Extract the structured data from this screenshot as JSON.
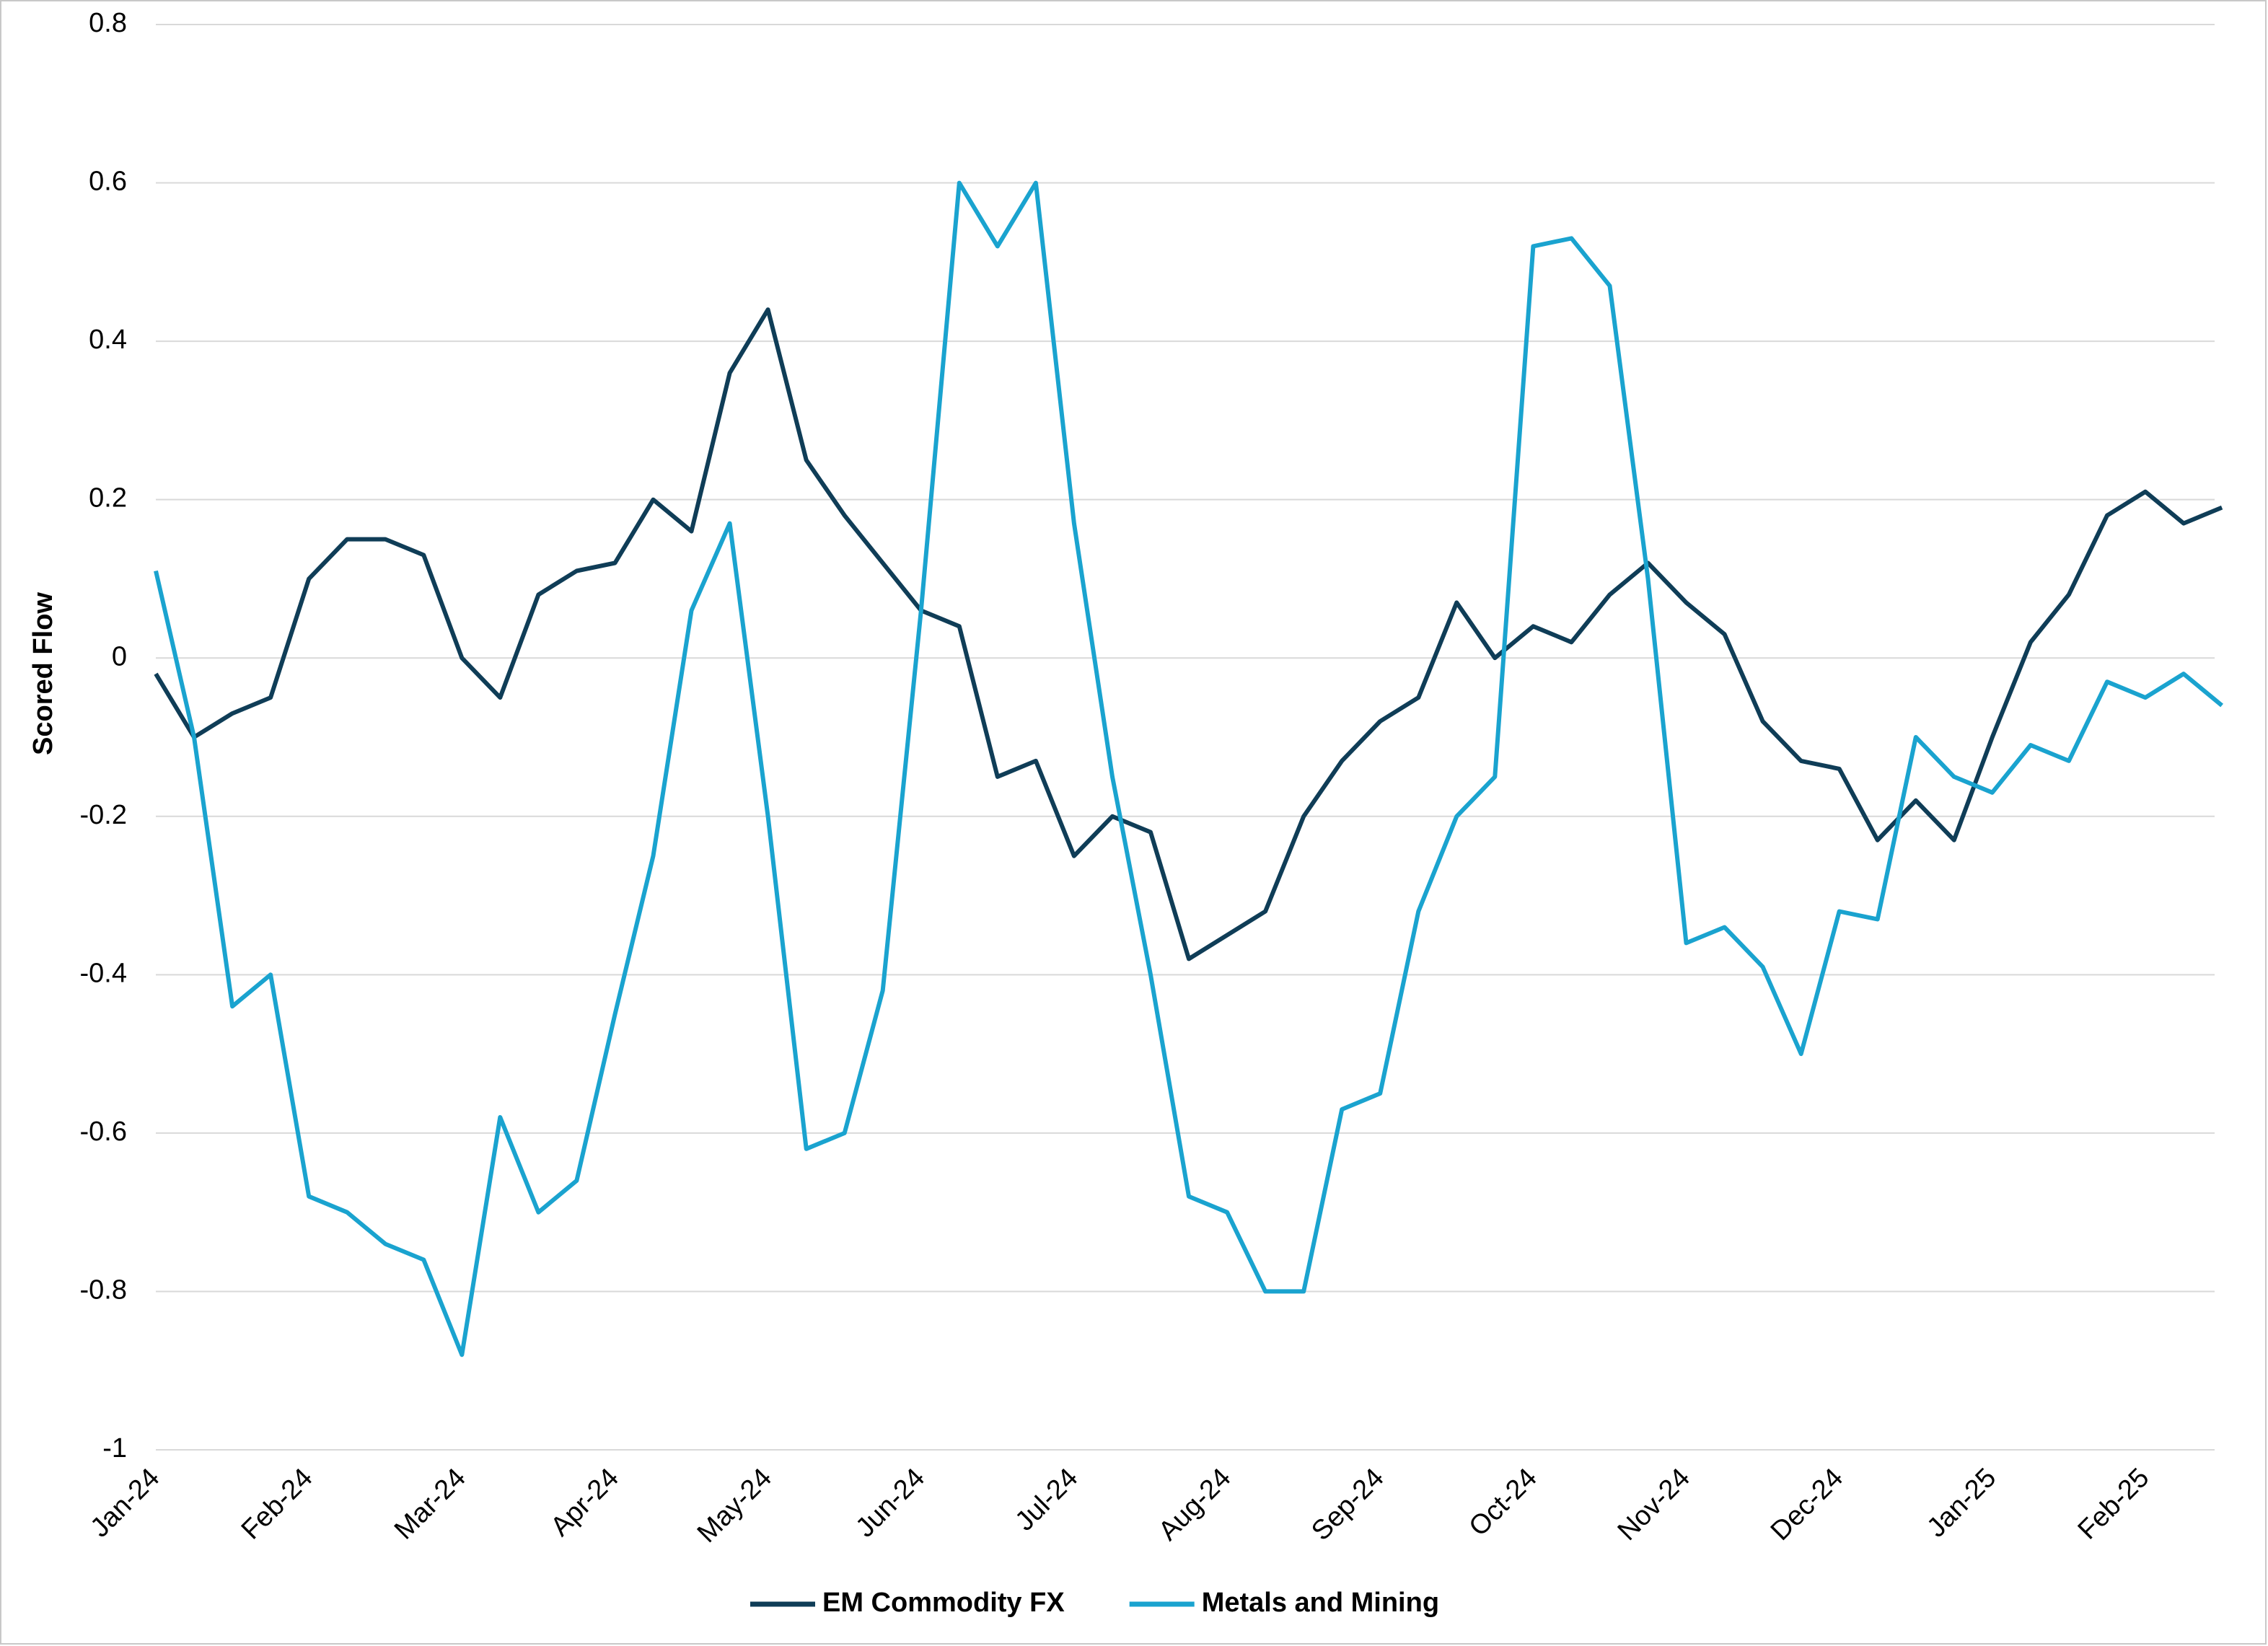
{
  "chart_data": {
    "type": "line",
    "y_label": "Scored Flow",
    "categories": [
      "Jan-24",
      null,
      null,
      null,
      "Feb-24",
      null,
      null,
      null,
      "Mar-24",
      null,
      null,
      null,
      "Apr-24",
      null,
      null,
      null,
      "May-24",
      null,
      null,
      null,
      "Jun-24",
      null,
      null,
      null,
      "Jul-24",
      null,
      null,
      null,
      "Aug-24",
      null,
      null,
      null,
      "Sep-24",
      null,
      null,
      null,
      "Oct-24",
      null,
      null,
      null,
      "Nov-24",
      null,
      null,
      null,
      "Dec-24",
      null,
      null,
      null,
      "Jan-25",
      null,
      null,
      null,
      "Feb-25",
      null,
      null
    ],
    "series": [
      {
        "name": "EM Commodity FX",
        "color": "#0f3d57",
        "values": [
          -0.02,
          -0.1,
          -0.07,
          -0.05,
          0.1,
          0.15,
          0.15,
          0.13,
          0.0,
          -0.05,
          0.08,
          0.11,
          0.12,
          0.2,
          0.16,
          0.36,
          0.44,
          0.25,
          0.18,
          0.12,
          0.06,
          0.04,
          -0.15,
          -0.13,
          -0.25,
          -0.2,
          -0.22,
          -0.38,
          -0.35,
          -0.32,
          -0.2,
          -0.13,
          -0.08,
          -0.05,
          0.07,
          0.0,
          0.04,
          0.02,
          0.08,
          0.12,
          0.07,
          0.03,
          -0.08,
          -0.13,
          -0.14,
          -0.23,
          -0.18,
          -0.23,
          -0.1,
          0.02,
          0.08,
          0.18,
          0.21,
          0.17,
          0.19
        ]
      },
      {
        "name": "Metals and Mining",
        "color": "#1aa3cf",
        "values": [
          0.11,
          -0.1,
          -0.44,
          -0.4,
          -0.68,
          -0.7,
          -0.74,
          -0.76,
          -0.88,
          -0.58,
          -0.7,
          -0.66,
          -0.45,
          -0.25,
          0.06,
          0.17,
          -0.2,
          -0.62,
          -0.6,
          -0.42,
          0.06,
          0.6,
          0.52,
          0.6,
          0.17,
          -0.15,
          -0.4,
          -0.68,
          -0.7,
          -0.8,
          -0.8,
          -0.57,
          -0.55,
          -0.32,
          -0.2,
          -0.15,
          0.52,
          0.53,
          0.47,
          0.1,
          -0.36,
          -0.34,
          -0.39,
          -0.5,
          -0.32,
          -0.33,
          -0.1,
          -0.15,
          -0.17,
          -0.11,
          -0.13,
          -0.03,
          -0.05,
          -0.02,
          -0.06
        ]
      }
    ],
    "ylim": [
      -1,
      0.8
    ],
    "yticks": [
      0.8,
      0.6,
      0.4,
      0.2,
      0,
      -0.2,
      -0.4,
      -0.6,
      -0.8,
      -1
    ],
    "grid": true,
    "legend": "bottom"
  }
}
